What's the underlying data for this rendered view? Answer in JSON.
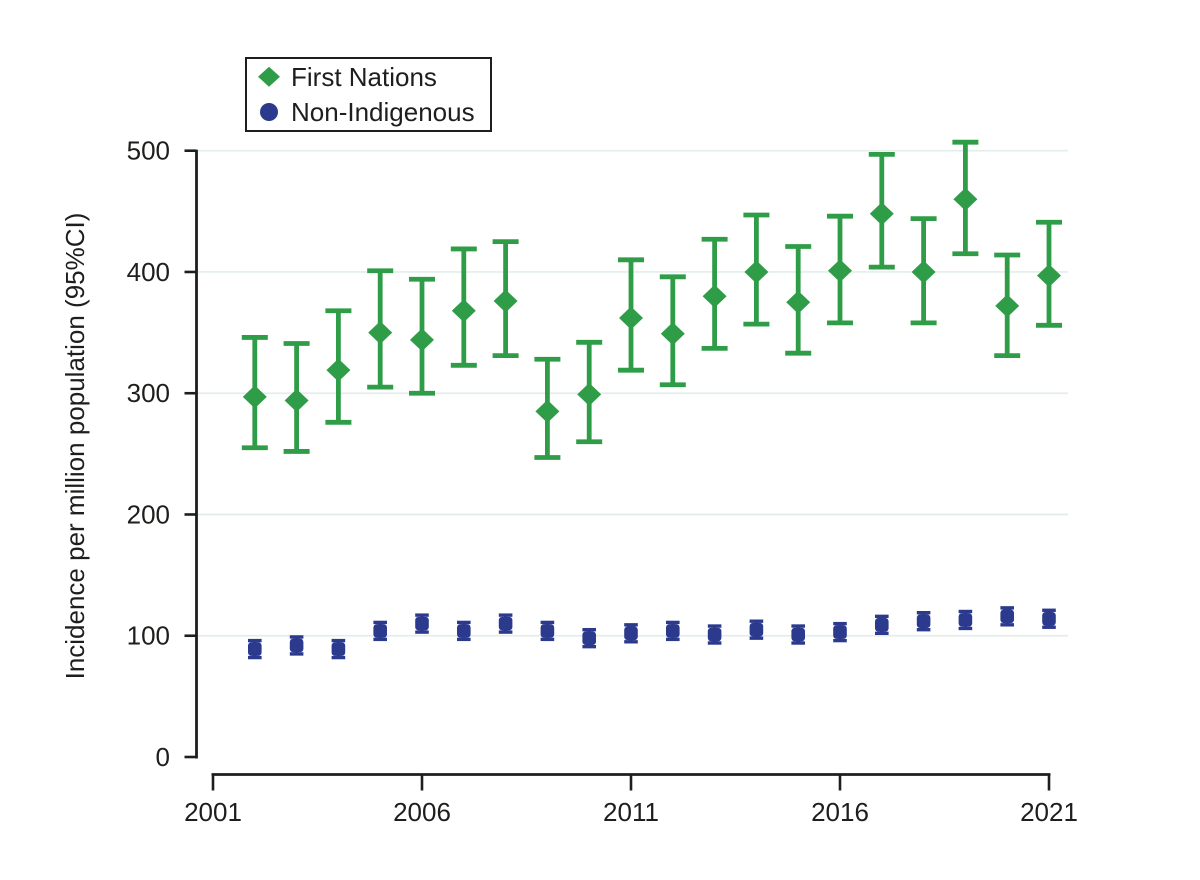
{
  "colors": {
    "first_nations": "#2f9d48",
    "non_indigenous": "#2c3a8e",
    "axis": "#1e1e1c",
    "gridline": "#e2eeea",
    "background": "#ffffff"
  },
  "chart_data": {
    "type": "scatter",
    "title": "",
    "xlabel": "",
    "ylabel": "Incidence per million population (95%CI)",
    "xlim": [
      2001,
      2021
    ],
    "ylim": [
      0,
      500
    ],
    "x_ticks": [
      2001,
      2006,
      2011,
      2016,
      2021
    ],
    "y_ticks": [
      0,
      100,
      200,
      300,
      400,
      500
    ],
    "grid": "horizontal-gridlines-100-to-500",
    "legend_position": "top-left-inside-box",
    "x": [
      2002,
      2003,
      2004,
      2005,
      2006,
      2007,
      2008,
      2009,
      2010,
      2011,
      2012,
      2013,
      2014,
      2015,
      2016,
      2017,
      2018,
      2019,
      2020,
      2021
    ],
    "series": [
      {
        "name": "First Nations",
        "marker": "diamond",
        "color": "#2f9d48",
        "values": [
          297,
          294,
          319,
          350,
          344,
          368,
          376,
          285,
          299,
          362,
          349,
          380,
          400,
          375,
          401,
          448,
          400,
          460,
          372,
          397
        ],
        "ci_low": [
          255,
          252,
          276,
          305,
          300,
          323,
          331,
          247,
          260,
          319,
          307,
          337,
          357,
          333,
          358,
          404,
          358,
          415,
          331,
          356
        ],
        "ci_high": [
          346,
          341,
          368,
          401,
          394,
          419,
          425,
          328,
          342,
          410,
          396,
          427,
          447,
          421,
          446,
          497,
          444,
          507,
          414,
          441
        ]
      },
      {
        "name": "Non-Indigenous",
        "marker": "square",
        "color": "#2c3a8e",
        "values": [
          89,
          92,
          89,
          104,
          110,
          104,
          110,
          104,
          98,
          102,
          104,
          101,
          105,
          101,
          103,
          109,
          112,
          113,
          116,
          114
        ],
        "ci_low": [
          82,
          85,
          82,
          97,
          103,
          97,
          103,
          97,
          91,
          95,
          97,
          94,
          98,
          94,
          96,
          102,
          105,
          106,
          109,
          107
        ],
        "ci_high": [
          96,
          99,
          96,
          111,
          117,
          111,
          117,
          111,
          105,
          109,
          111,
          108,
          112,
          108,
          110,
          116,
          119,
          120,
          123,
          121
        ]
      }
    ]
  }
}
